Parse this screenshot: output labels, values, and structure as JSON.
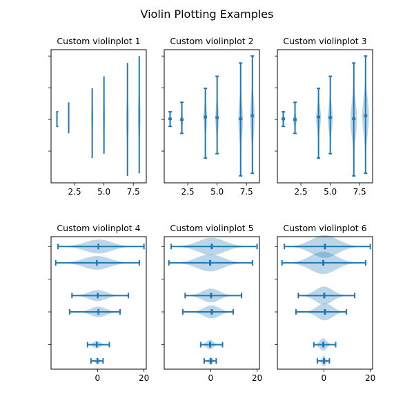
{
  "figure": {
    "title": "Violin Plotting Examples",
    "line_color": "#1f77b4",
    "fill_color": "#1f77b4",
    "fill_opacity": 0.3
  },
  "chart_data": [
    {
      "type": "violin",
      "orientation": "vertical",
      "title": "Custom violinplot 1",
      "xlabel": "",
      "ylabel": "",
      "xlim": [
        0.5,
        8.6
      ],
      "ylim": [
        -10,
        11
      ],
      "xticks": [
        2.5,
        5.0,
        7.5
      ],
      "xtick_labels": [
        "2.5",
        "5.0",
        "7.5"
      ],
      "yticks": [
        -5,
        0,
        5,
        10
      ],
      "ytick_labels": [
        "",
        "",
        "",
        ""
      ],
      "show_means": false,
      "show_extrema": true,
      "show_medians": false,
      "points": 20,
      "bw_method": "scott",
      "positions": [
        1,
        2,
        4,
        5,
        7,
        8
      ],
      "series": [
        {
          "position": 1,
          "min": -1.1,
          "max": 1.2,
          "mean": 0.0,
          "median": 0.0,
          "width_scale": 0.4
        },
        {
          "position": 2,
          "min": -2.2,
          "max": 2.7,
          "mean": -0.1,
          "median": -0.1,
          "width_scale": 0.4
        },
        {
          "position": 4,
          "min": -6.1,
          "max": 4.9,
          "mean": 0.3,
          "median": 0.3,
          "width_scale": 0.4
        },
        {
          "position": 5,
          "min": -5.4,
          "max": 6.8,
          "mean": 0.2,
          "median": 0.2,
          "width_scale": 0.4
        },
        {
          "position": 7,
          "min": -8.9,
          "max": 8.9,
          "mean": 0.0,
          "median": 0.0,
          "width_scale": 0.4
        },
        {
          "position": 8,
          "min": -8.5,
          "max": 10.0,
          "mean": 0.5,
          "median": 0.5,
          "width_scale": 0.4
        }
      ]
    },
    {
      "type": "violin",
      "orientation": "vertical",
      "title": "Custom violinplot 2",
      "xlabel": "",
      "ylabel": "",
      "xlim": [
        0.5,
        8.6
      ],
      "ylim": [
        -10,
        11
      ],
      "xticks": [
        2.5,
        5.0,
        7.5
      ],
      "xtick_labels": [
        "2.5",
        "5.0",
        "7.5"
      ],
      "yticks": [
        -5,
        0,
        5,
        10
      ],
      "ytick_labels": [
        "",
        "",
        "",
        ""
      ],
      "show_means": true,
      "show_extrema": true,
      "show_medians": true,
      "points": 40,
      "bw_method": 0.5,
      "positions": [
        1,
        2,
        4,
        5,
        7,
        8
      ],
      "series": [
        {
          "position": 1,
          "min": -1.1,
          "max": 1.2,
          "mean": 0.0,
          "median": 0.0,
          "width_scale": 0.7
        },
        {
          "position": 2,
          "min": -2.2,
          "max": 2.7,
          "mean": -0.1,
          "median": -0.1,
          "width_scale": 0.7
        },
        {
          "position": 4,
          "min": -6.1,
          "max": 4.9,
          "mean": 0.3,
          "median": 0.3,
          "width_scale": 0.7
        },
        {
          "position": 5,
          "min": -5.4,
          "max": 6.8,
          "mean": 0.2,
          "median": 0.2,
          "width_scale": 0.7
        },
        {
          "position": 7,
          "min": -8.9,
          "max": 8.9,
          "mean": 0.0,
          "median": 0.0,
          "width_scale": 0.7
        },
        {
          "position": 8,
          "min": -8.5,
          "max": 10.0,
          "mean": 0.5,
          "median": 0.5,
          "width_scale": 0.7
        }
      ]
    },
    {
      "type": "violin",
      "orientation": "vertical",
      "title": "Custom violinplot 3",
      "xlabel": "",
      "ylabel": "",
      "xlim": [
        0.5,
        8.6
      ],
      "ylim": [
        -10,
        11
      ],
      "xticks": [
        2.5,
        5.0,
        7.5
      ],
      "xtick_labels": [
        "2.5",
        "5.0",
        "7.5"
      ],
      "yticks": [
        -5,
        0,
        5,
        10
      ],
      "ytick_labels": [
        "",
        "",
        "",
        ""
      ],
      "show_means": true,
      "show_extrema": true,
      "show_medians": true,
      "points": 60,
      "bw_method": 0.5,
      "positions": [
        1,
        2,
        4,
        5,
        7,
        8
      ],
      "series": [
        {
          "position": 1,
          "min": -1.1,
          "max": 1.2,
          "mean": 0.0,
          "median": 0.0,
          "width_scale": 1.0
        },
        {
          "position": 2,
          "min": -2.2,
          "max": 2.7,
          "mean": -0.1,
          "median": -0.1,
          "width_scale": 1.0
        },
        {
          "position": 4,
          "min": -6.1,
          "max": 4.9,
          "mean": 0.3,
          "median": 0.3,
          "width_scale": 1.0
        },
        {
          "position": 5,
          "min": -5.4,
          "max": 6.8,
          "mean": 0.2,
          "median": 0.2,
          "width_scale": 1.0
        },
        {
          "position": 7,
          "min": -8.9,
          "max": 8.9,
          "mean": 0.0,
          "median": 0.0,
          "width_scale": 1.0
        },
        {
          "position": 8,
          "min": -8.5,
          "max": 10.0,
          "mean": 0.5,
          "median": 0.5,
          "width_scale": 1.0
        }
      ]
    },
    {
      "type": "violin",
      "orientation": "horizontal",
      "title": "Custom violinplot 4",
      "xlabel": "",
      "ylabel": "",
      "xlim": [
        -20,
        21
      ],
      "ylim": [
        0.5,
        8.6
      ],
      "xticks": [
        0,
        20
      ],
      "xtick_labels": [
        "0",
        "20"
      ],
      "yticks": [
        2,
        4,
        6,
        8
      ],
      "ytick_labels": [
        "",
        "",
        "",
        ""
      ],
      "show_means": false,
      "show_extrema": true,
      "show_medians": true,
      "points": 200,
      "bw_method": "silverman",
      "positions": [
        1,
        2,
        4,
        5,
        7,
        8
      ],
      "series": [
        {
          "position": 1,
          "min": -2.8,
          "max": 2.4,
          "mean": 0.0,
          "median": 0.0,
          "width_scale": 0.8
        },
        {
          "position": 2,
          "min": -4.3,
          "max": 5.1,
          "mean": -0.3,
          "median": -0.3,
          "width_scale": 0.8
        },
        {
          "position": 4,
          "min": -12.0,
          "max": 9.7,
          "mean": 0.4,
          "median": 0.4,
          "width_scale": 0.8
        },
        {
          "position": 5,
          "min": -11.0,
          "max": 13.3,
          "mean": 0.1,
          "median": 0.1,
          "width_scale": 0.8
        },
        {
          "position": 7,
          "min": -18.0,
          "max": 18.0,
          "mean": -0.3,
          "median": -0.3,
          "width_scale": 0.8
        },
        {
          "position": 8,
          "min": -17.0,
          "max": 20.0,
          "mean": 0.4,
          "median": 0.4,
          "width_scale": 0.8
        }
      ]
    },
    {
      "type": "violin",
      "orientation": "horizontal",
      "title": "Custom violinplot 5",
      "xlabel": "",
      "ylabel": "",
      "xlim": [
        -20,
        21
      ],
      "ylim": [
        0.5,
        8.6
      ],
      "xticks": [
        0,
        20
      ],
      "xtick_labels": [
        "0",
        "20"
      ],
      "yticks": [
        2,
        4,
        6,
        8
      ],
      "ytick_labels": [
        "",
        "",
        "",
        ""
      ],
      "show_means": true,
      "show_extrema": true,
      "show_medians": true,
      "points": 200,
      "bw_method": 0.5,
      "positions": [
        1,
        2,
        4,
        5,
        7,
        8
      ],
      "series": [
        {
          "position": 1,
          "min": -2.8,
          "max": 2.4,
          "mean": 0.0,
          "median": 0.0,
          "width_scale": 1.0
        },
        {
          "position": 2,
          "min": -4.3,
          "max": 5.1,
          "mean": -0.3,
          "median": -0.3,
          "width_scale": 1.0
        },
        {
          "position": 4,
          "min": -12.0,
          "max": 9.7,
          "mean": 0.4,
          "median": 0.4,
          "width_scale": 1.0
        },
        {
          "position": 5,
          "min": -11.0,
          "max": 13.3,
          "mean": 0.1,
          "median": 0.1,
          "width_scale": 1.0
        },
        {
          "position": 7,
          "min": -18.0,
          "max": 18.0,
          "mean": -0.3,
          "median": -0.3,
          "width_scale": 1.0
        },
        {
          "position": 8,
          "min": -17.0,
          "max": 20.0,
          "mean": 0.4,
          "median": 0.4,
          "width_scale": 1.0
        }
      ]
    },
    {
      "type": "violin",
      "orientation": "horizontal",
      "title": "Custom violinplot 6",
      "xlabel": "",
      "ylabel": "",
      "xlim": [
        -20,
        21
      ],
      "ylim": [
        0.5,
        8.6
      ],
      "xticks": [
        0,
        20
      ],
      "xtick_labels": [
        "0",
        "20"
      ],
      "yticks": [
        2,
        4,
        6,
        8
      ],
      "ytick_labels": [
        "",
        "",
        "",
        ""
      ],
      "show_means": true,
      "show_extrema": true,
      "show_medians": true,
      "points": 200,
      "bw_method": 0.5,
      "positions": [
        1,
        2,
        4,
        5,
        7,
        8
      ],
      "series": [
        {
          "position": 1,
          "min": -2.8,
          "max": 2.4,
          "mean": 0.0,
          "median": 0.0,
          "width_scale": 1.3
        },
        {
          "position": 2,
          "min": -4.3,
          "max": 5.1,
          "mean": -0.3,
          "median": -0.3,
          "width_scale": 1.3
        },
        {
          "position": 4,
          "min": -12.0,
          "max": 9.7,
          "mean": 0.4,
          "median": 0.4,
          "width_scale": 1.3
        },
        {
          "position": 5,
          "min": -11.0,
          "max": 13.3,
          "mean": 0.1,
          "median": 0.1,
          "width_scale": 1.3
        },
        {
          "position": 7,
          "min": -18.0,
          "max": 18.0,
          "mean": -0.3,
          "median": -0.3,
          "width_scale": 1.3
        },
        {
          "position": 8,
          "min": -17.0,
          "max": 20.0,
          "mean": 0.4,
          "median": 0.4,
          "width_scale": 1.3
        }
      ]
    }
  ]
}
